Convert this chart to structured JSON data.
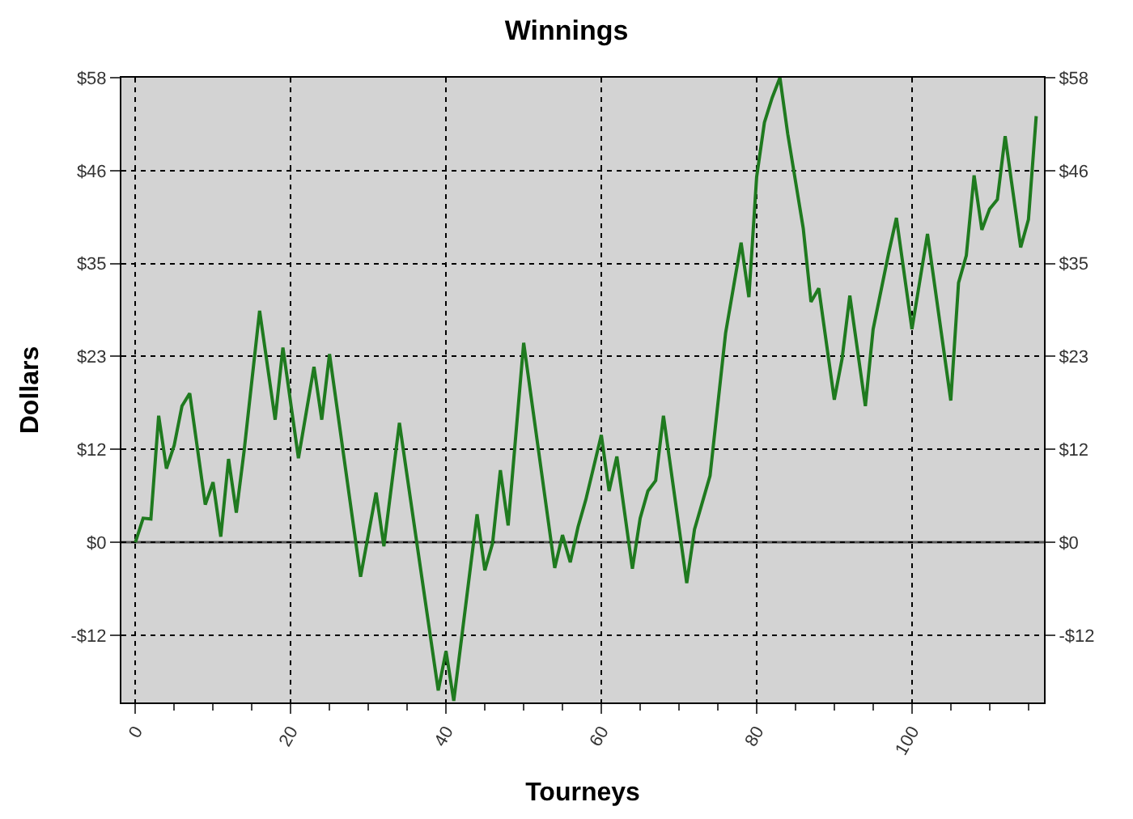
{
  "chart_data": {
    "type": "line",
    "title": "Winnings",
    "xlabel": "Tourneys",
    "ylabel": "Dollars",
    "x": [
      0,
      1,
      2,
      3,
      4,
      5,
      6,
      7,
      9,
      10,
      11,
      12,
      13,
      14,
      16,
      18,
      19,
      21,
      23,
      24,
      25,
      29,
      31,
      32,
      34,
      39,
      40,
      41,
      44,
      45,
      46,
      47,
      48,
      50,
      54,
      55,
      56,
      57,
      58,
      60,
      61,
      62,
      64,
      65,
      66,
      67,
      68,
      71,
      72,
      74,
      76,
      78,
      79,
      80,
      81,
      82,
      83,
      84,
      86,
      87,
      88,
      90,
      91,
      92,
      94,
      95,
      97,
      98,
      100,
      102,
      105,
      106,
      107,
      108,
      109,
      110,
      111,
      112,
      114,
      115,
      116
    ],
    "series": [
      {
        "color": "#1f7a1f",
        "values": [
          0,
          3.0,
          2.9,
          15.8,
          9.2,
          12.1,
          17.0,
          18.6,
          4.7,
          7.5,
          0.7,
          10.4,
          3.7,
          11.4,
          28.9,
          15.3,
          24.3,
          10.5,
          21.9,
          15.3,
          23.5,
          -4.3,
          6.2,
          -0.5,
          14.9,
          -18.5,
          -13.6,
          -19.8,
          3.5,
          -3.5,
          -0.1,
          9.0,
          2.1,
          24.9,
          -3.2,
          0.9,
          -2.5,
          1.9,
          5.3,
          13.4,
          6.4,
          10.7,
          -3.3,
          3.0,
          6.4,
          7.7,
          15.8,
          -5.1,
          1.6,
          8.3,
          26.1,
          37.4,
          30.6,
          45.6,
          52.4,
          55.5,
          58,
          51,
          39.2,
          30.0,
          31.7,
          17.8,
          22.9,
          30.8,
          17.0,
          26.6,
          36.1,
          40.5,
          26.6,
          38.5,
          17.7,
          32.4,
          35.8,
          45.8,
          39.0,
          41.6,
          42.8,
          50.7,
          36.8,
          40.3,
          53.2
        ]
      }
    ],
    "xlim": [
      -1.8,
      117
    ],
    "xticks": [
      0,
      {
        "value": 5,
        "label": null
      },
      {
        "value": 10,
        "label": null
      },
      {
        "value": 15,
        "label": null
      },
      20,
      {
        "value": 25,
        "label": null
      },
      {
        "value": 30,
        "label": null
      },
      {
        "value": 35,
        "label": null
      },
      40,
      {
        "value": 45,
        "label": null
      },
      {
        "value": 50,
        "label": null
      },
      {
        "value": 55,
        "label": null
      },
      60,
      {
        "value": 65,
        "label": null
      },
      {
        "value": 70,
        "label": null
      },
      {
        "value": 75,
        "label": null
      },
      80,
      {
        "value": 85,
        "label": null
      },
      {
        "value": 90,
        "label": null
      },
      {
        "value": 95,
        "label": null
      },
      100,
      {
        "value": 105,
        "label": null
      },
      {
        "value": 110,
        "label": null
      },
      {
        "value": 115,
        "label": null
      }
    ],
    "ylim": [
      -20,
      58
    ],
    "yticks": [
      {
        "value": -11.6,
        "label": "-$12"
      },
      {
        "value": 0,
        "label": "$0"
      },
      {
        "value": 11.6,
        "label": "$12"
      },
      {
        "value": 23.2,
        "label": "$23"
      },
      {
        "value": 34.8,
        "label": "$35"
      },
      {
        "value": 46.4,
        "label": "$46"
      },
      {
        "value": 58,
        "label": "$58"
      }
    ],
    "y2lim": [
      -20,
      58
    ],
    "y2ticks": [
      {
        "value": -11.6,
        "label": "-$12"
      },
      {
        "value": 0,
        "label": "$0"
      },
      {
        "value": 11.6,
        "label": "$12"
      },
      {
        "value": 23.2,
        "label": "$23"
      },
      {
        "value": 34.8,
        "label": "$35"
      },
      {
        "value": 46.4,
        "label": "$46"
      },
      {
        "value": 58,
        "label": "$58"
      }
    ],
    "ref_lines": [
      {
        "axis": "y",
        "value": 0,
        "color": "#555555"
      }
    ],
    "grid": true,
    "marker": "none",
    "line_style": "solid"
  }
}
